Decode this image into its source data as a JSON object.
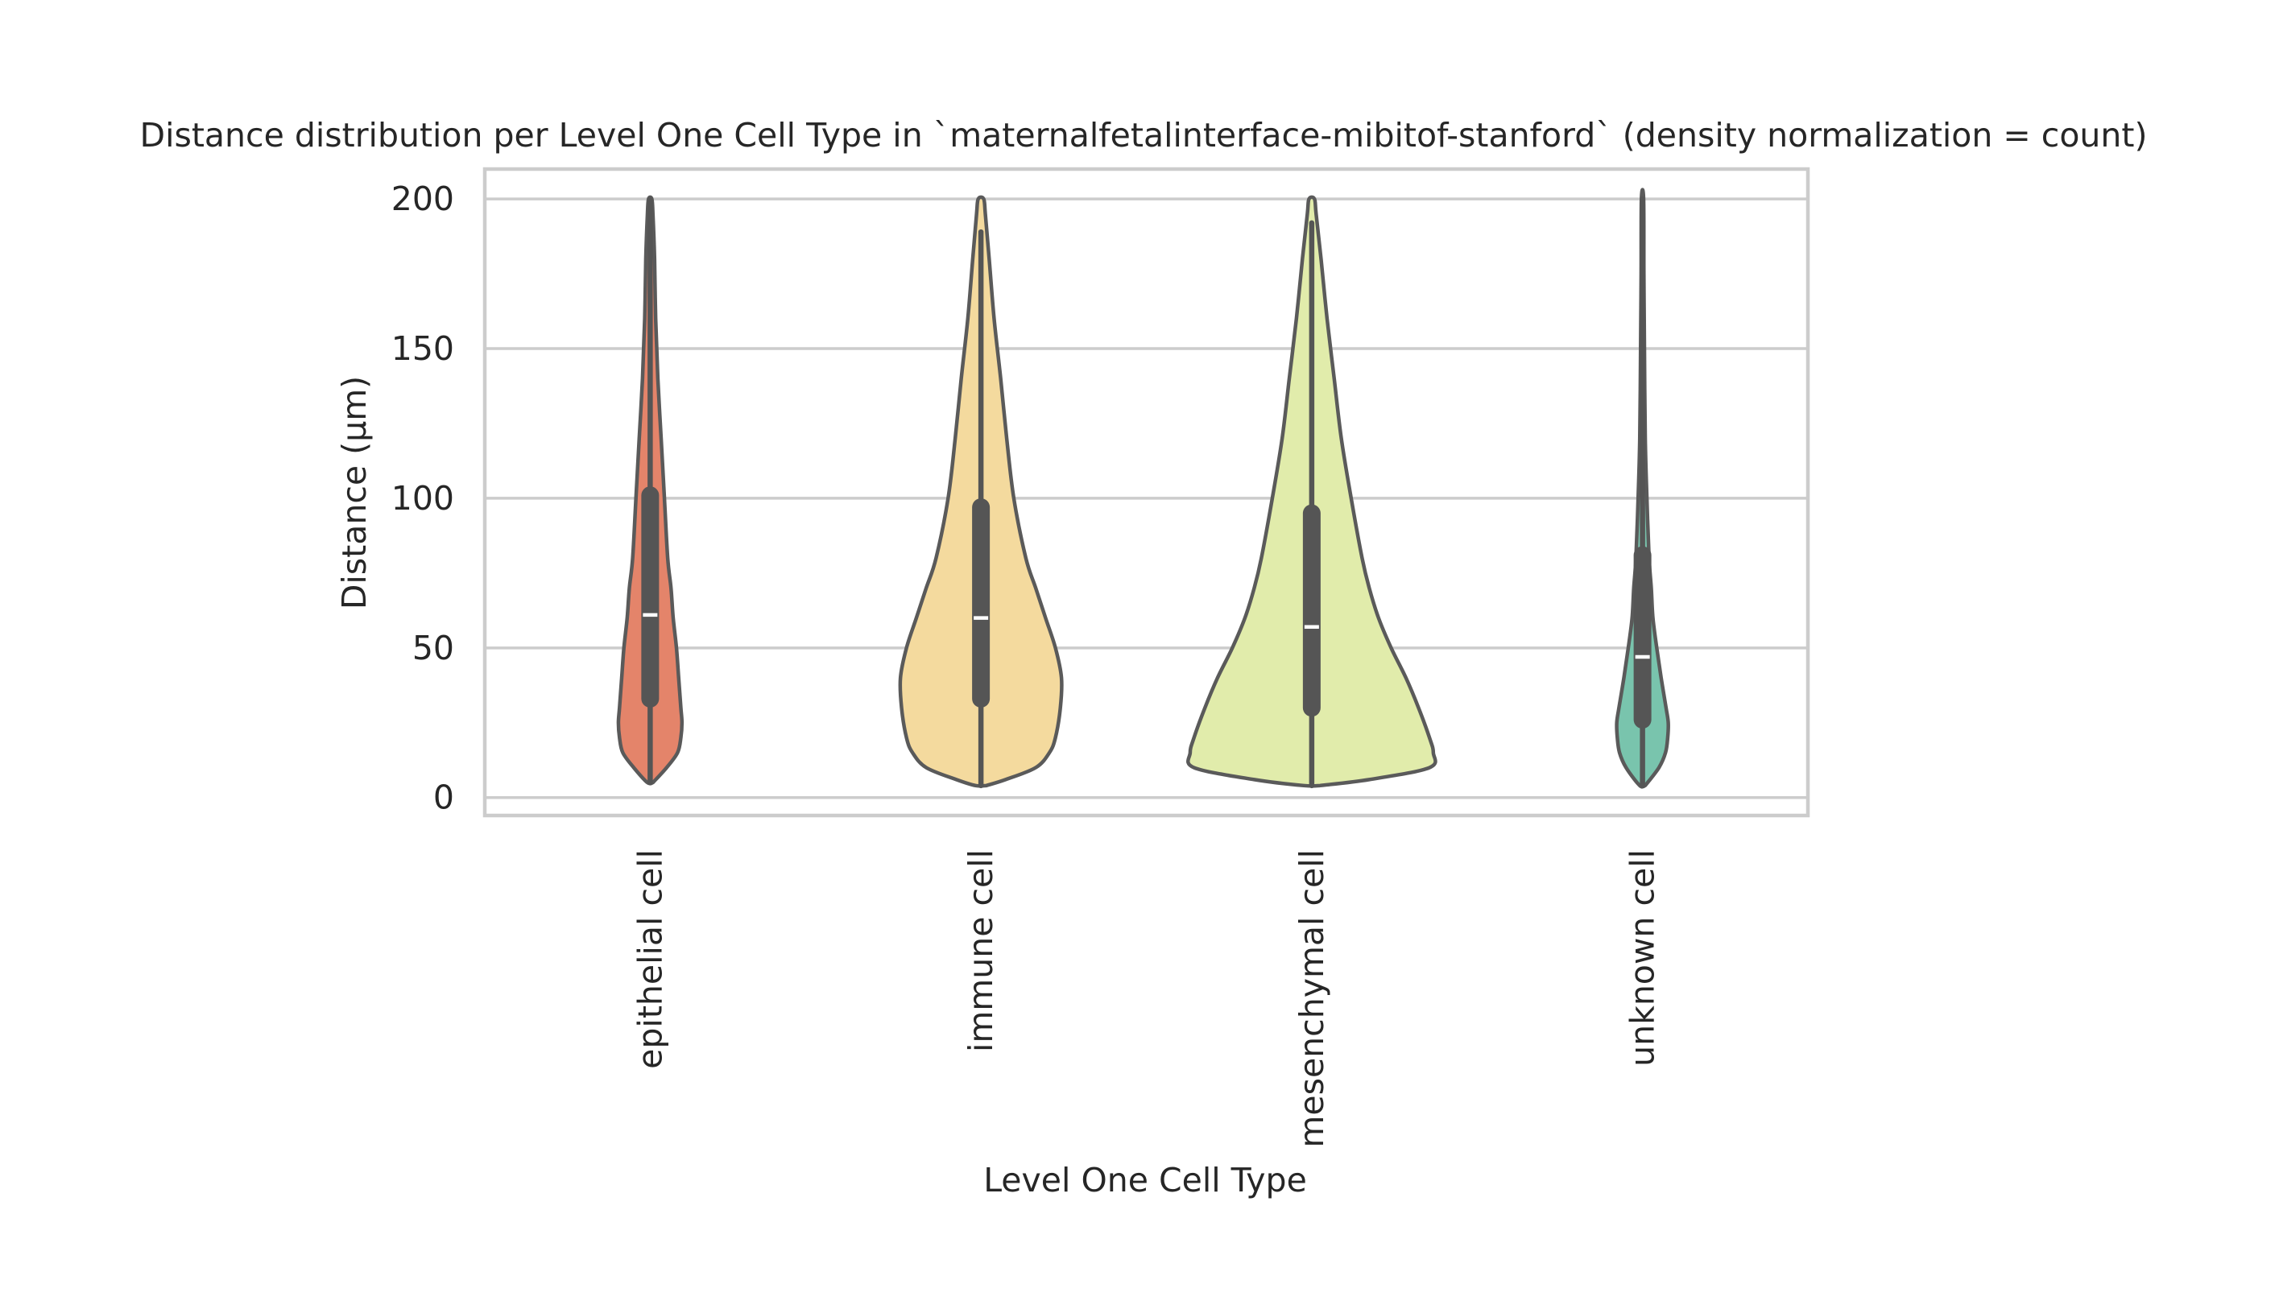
{
  "chart_data": {
    "type": "violin",
    "title": "Distance distribution per Level One Cell Type in `maternalfetalinterface-mibitof-stanford` (density normalization = count)",
    "xlabel": "Level One Cell Type",
    "ylabel": "Distance (µm)",
    "ylim": [
      -6,
      210
    ],
    "yticks": [
      0,
      50,
      100,
      150,
      200
    ],
    "grid": true,
    "categories": [
      "epithelial cell",
      "immune cell",
      "mesenchymal cell",
      "unknown cell"
    ],
    "series": [
      {
        "category": "epithelial cell",
        "color": "#e4846a",
        "min": 5,
        "q1": 33,
        "median": 61,
        "q3": 101,
        "max": 200,
        "density": [
          [
            5,
            0.05
          ],
          [
            10,
            0.3
          ],
          [
            15,
            0.5
          ],
          [
            20,
            0.56
          ],
          [
            25,
            0.58
          ],
          [
            30,
            0.56
          ],
          [
            40,
            0.52
          ],
          [
            50,
            0.48
          ],
          [
            60,
            0.42
          ],
          [
            70,
            0.38
          ],
          [
            80,
            0.32
          ],
          [
            100,
            0.26
          ],
          [
            120,
            0.2
          ],
          [
            140,
            0.14
          ],
          [
            160,
            0.1
          ],
          [
            180,
            0.08
          ],
          [
            195,
            0.05
          ],
          [
            200,
            0.03
          ]
        ]
      },
      {
        "category": "immune cell",
        "color": "#f4da9e",
        "min": 4,
        "q1": 33,
        "median": 60,
        "q3": 97,
        "max": 189,
        "density": [
          [
            4,
            0.1
          ],
          [
            6,
            0.45
          ],
          [
            10,
            1.0
          ],
          [
            15,
            1.25
          ],
          [
            20,
            1.36
          ],
          [
            30,
            1.45
          ],
          [
            40,
            1.47
          ],
          [
            50,
            1.36
          ],
          [
            60,
            1.18
          ],
          [
            70,
            1.0
          ],
          [
            80,
            0.82
          ],
          [
            100,
            0.6
          ],
          [
            120,
            0.47
          ],
          [
            140,
            0.36
          ],
          [
            160,
            0.24
          ],
          [
            180,
            0.15
          ],
          [
            195,
            0.08
          ],
          [
            200,
            0.05
          ]
        ]
      },
      {
        "category": "mesenchymal cell",
        "color": "#e1ecab",
        "min": 4,
        "q1": 30,
        "median": 57,
        "q3": 95,
        "max": 192,
        "density": [
          [
            4,
            0.15
          ],
          [
            6,
            1.05
          ],
          [
            10,
            2.15
          ],
          [
            15,
            2.22
          ],
          [
            20,
            2.15
          ],
          [
            30,
            1.95
          ],
          [
            40,
            1.72
          ],
          [
            50,
            1.45
          ],
          [
            60,
            1.22
          ],
          [
            70,
            1.05
          ],
          [
            80,
            0.92
          ],
          [
            100,
            0.72
          ],
          [
            120,
            0.54
          ],
          [
            140,
            0.41
          ],
          [
            160,
            0.28
          ],
          [
            180,
            0.17
          ],
          [
            195,
            0.08
          ],
          [
            200,
            0.05
          ]
        ]
      },
      {
        "category": "unknown cell",
        "color": "#79c4ad",
        "min": 4,
        "q1": 26,
        "median": 47,
        "q3": 81,
        "max": 200,
        "density": [
          [
            4,
            0.05
          ],
          [
            10,
            0.3
          ],
          [
            15,
            0.42
          ],
          [
            20,
            0.46
          ],
          [
            25,
            0.47
          ],
          [
            30,
            0.43
          ],
          [
            40,
            0.34
          ],
          [
            50,
            0.26
          ],
          [
            60,
            0.19
          ],
          [
            70,
            0.16
          ],
          [
            80,
            0.12
          ],
          [
            100,
            0.08
          ],
          [
            120,
            0.05
          ],
          [
            150,
            0.035
          ],
          [
            175,
            0.025
          ],
          [
            200,
            0.02
          ]
        ]
      }
    ]
  }
}
